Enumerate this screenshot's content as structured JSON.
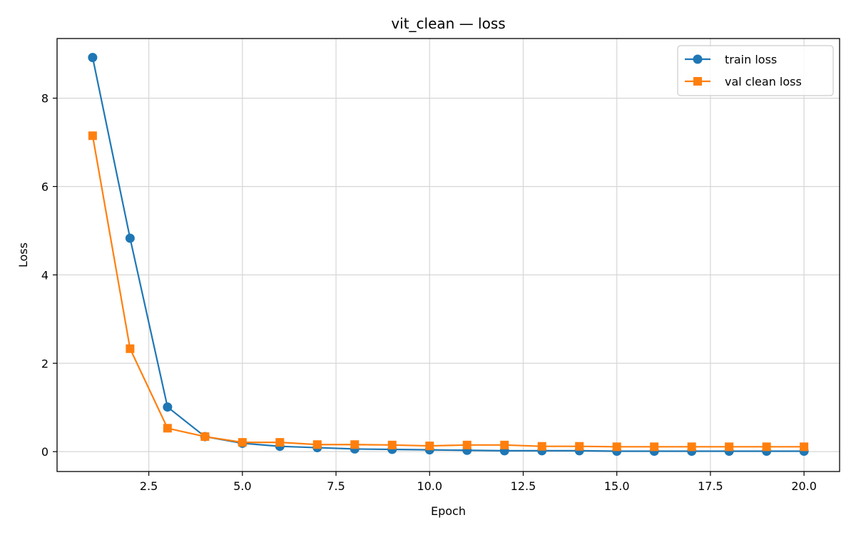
{
  "chart_data": {
    "type": "line",
    "title": "vit_clean — loss",
    "xlabel": "Epoch",
    "ylabel": "Loss",
    "xlim": [
      0.05,
      20.95
    ],
    "ylim": [
      -0.45,
      9.35
    ],
    "xticks": [
      2.5,
      5.0,
      7.5,
      10.0,
      12.5,
      15.0,
      17.5,
      20.0
    ],
    "xtick_labels": [
      "2.5",
      "5.0",
      "7.5",
      "10.0",
      "12.5",
      "15.0",
      "17.5",
      "20.0"
    ],
    "yticks": [
      0,
      2,
      4,
      6,
      8
    ],
    "ytick_labels": [
      "0",
      "2",
      "4",
      "6",
      "8"
    ],
    "grid": true,
    "legend_position": "top-right",
    "x": [
      1,
      2,
      3,
      4,
      5,
      6,
      7,
      8,
      9,
      10,
      11,
      12,
      13,
      14,
      15,
      16,
      17,
      18,
      19,
      20
    ],
    "series": [
      {
        "name": "train loss",
        "color": "#1f77b4",
        "marker": "circle",
        "values": [
          8.92,
          4.83,
          1.01,
          0.34,
          0.19,
          0.12,
          0.09,
          0.06,
          0.05,
          0.04,
          0.03,
          0.02,
          0.02,
          0.02,
          0.01,
          0.01,
          0.01,
          0.01,
          0.01,
          0.01
        ]
      },
      {
        "name": "val clean loss",
        "color": "#ff7f0e",
        "marker": "square",
        "values": [
          7.15,
          2.33,
          0.53,
          0.34,
          0.21,
          0.21,
          0.16,
          0.16,
          0.15,
          0.13,
          0.15,
          0.15,
          0.12,
          0.12,
          0.11,
          0.11,
          0.11,
          0.11,
          0.11,
          0.11
        ]
      }
    ]
  }
}
